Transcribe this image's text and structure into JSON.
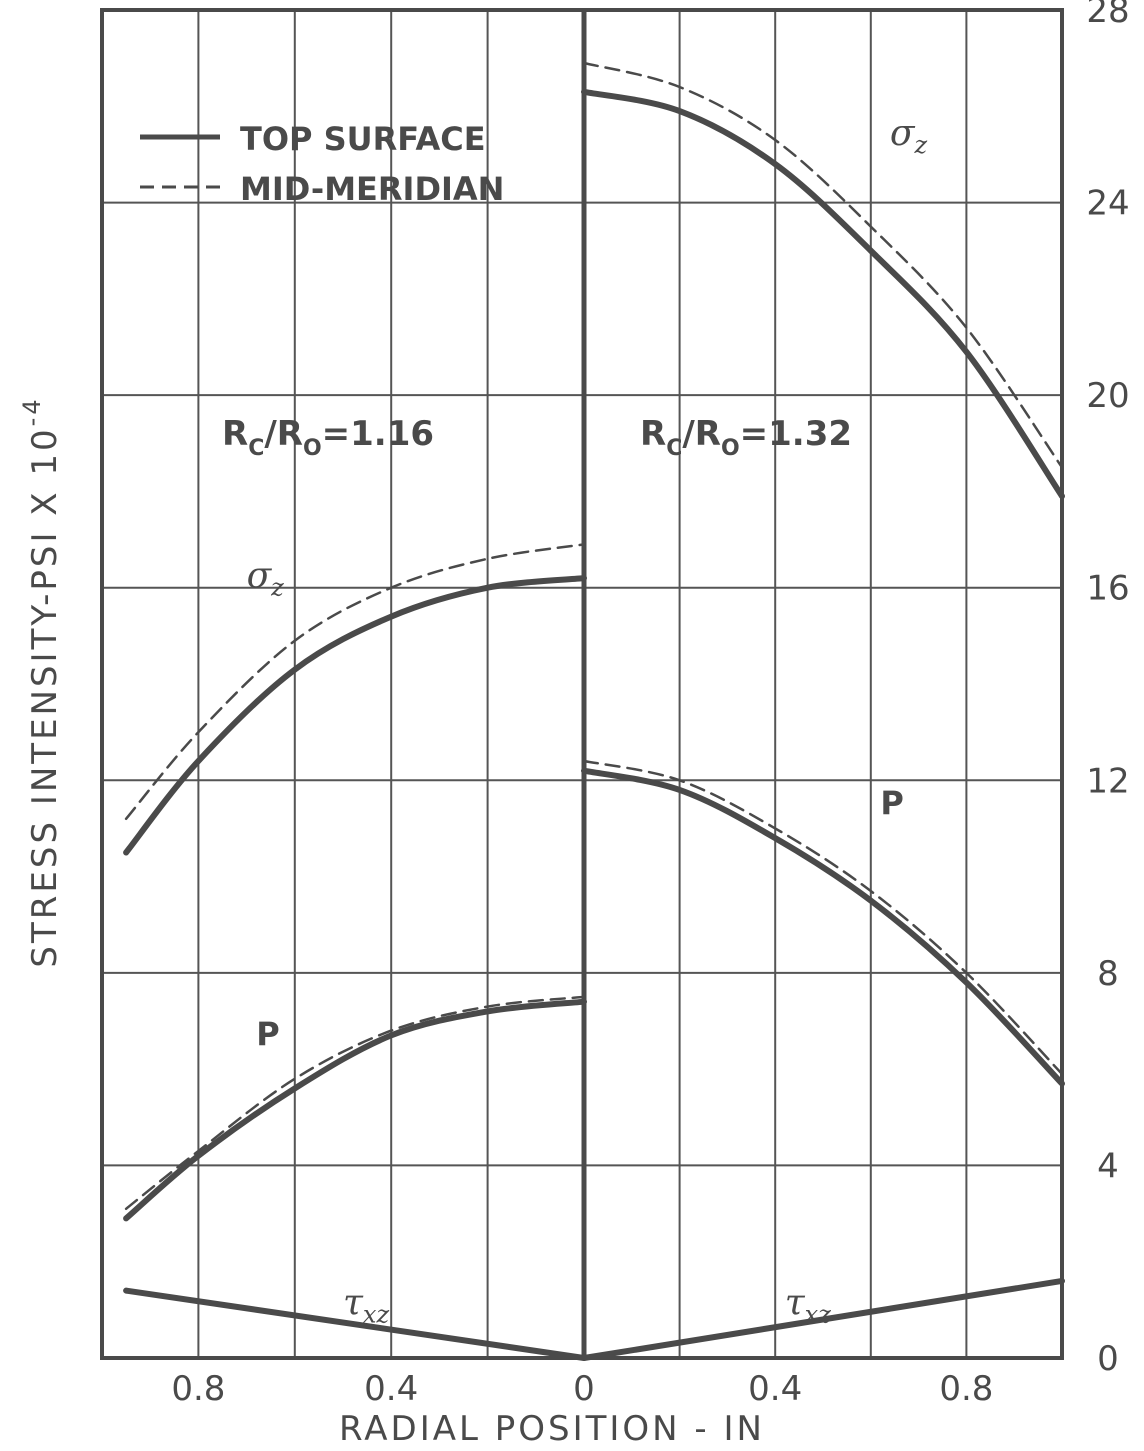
{
  "chart_data": {
    "type": "line",
    "ylabel": "STRESS INTENSITY-PSI X 10",
    "ylabel_exponent": "-4",
    "xlabel": "RADIAL POSITION - IN",
    "ylim": [
      0,
      28
    ],
    "y_ticks": [
      "0",
      "4",
      "8",
      "12",
      "16",
      "20",
      "24",
      "28"
    ],
    "x_ticks_left": [
      "0.8",
      "0.4",
      "0"
    ],
    "x_ticks_right": [
      "0",
      "0.4",
      "0.8"
    ],
    "grid": true,
    "legend_position": "top-left",
    "legend": [
      {
        "label": "TOP SURFACE",
        "style": "solid"
      },
      {
        "label": "MID-MERIDIAN",
        "style": "dashed"
      }
    ],
    "panels": [
      {
        "id": "left",
        "annotation": {
          "r": "R",
          "sub_c": "C",
          "slash": "/R",
          "sub_o": "O",
          "value": "=1.16"
        },
        "x_direction": "reversed",
        "xlim": [
          0,
          1.0
        ],
        "series": [
          {
            "curve": "sigma_z",
            "style": "solid",
            "x": [
              0.95,
              0.8,
              0.6,
              0.4,
              0.2,
              0.0
            ],
            "y": [
              10.5,
              12.4,
              14.3,
              15.4,
              16.0,
              16.2
            ]
          },
          {
            "curve": "sigma_z",
            "style": "dashed",
            "x": [
              0.95,
              0.8,
              0.6,
              0.4,
              0.2,
              0.0
            ],
            "y": [
              11.2,
              13.0,
              14.9,
              16.0,
              16.6,
              16.9
            ]
          },
          {
            "curve": "P",
            "style": "solid",
            "x": [
              0.95,
              0.8,
              0.6,
              0.4,
              0.2,
              0.0
            ],
            "y": [
              2.9,
              4.2,
              5.6,
              6.7,
              7.2,
              7.4
            ]
          },
          {
            "curve": "P",
            "style": "dashed",
            "x": [
              0.95,
              0.8,
              0.6,
              0.4,
              0.2,
              0.0
            ],
            "y": [
              3.1,
              4.3,
              5.8,
              6.8,
              7.3,
              7.5
            ]
          },
          {
            "curve": "tau_xz",
            "style": "solid",
            "x": [
              0.95,
              0.0
            ],
            "y": [
              1.4,
              0.0
            ]
          }
        ]
      },
      {
        "id": "right",
        "annotation": {
          "r": "R",
          "sub_c": "C",
          "slash": "/R",
          "sub_o": "O",
          "value": "=1.32"
        },
        "x_direction": "normal",
        "xlim": [
          0,
          1.0
        ],
        "series": [
          {
            "curve": "sigma_z",
            "style": "solid",
            "x": [
              0.0,
              0.2,
              0.4,
              0.6,
              0.8,
              1.0
            ],
            "y": [
              26.3,
              25.9,
              24.8,
              23.0,
              20.9,
              17.9
            ]
          },
          {
            "curve": "sigma_z",
            "style": "dashed",
            "x": [
              0.0,
              0.2,
              0.4,
              0.6,
              0.8,
              1.0
            ],
            "y": [
              26.9,
              26.4,
              25.3,
              23.5,
              21.4,
              18.5
            ]
          },
          {
            "curve": "P",
            "style": "solid",
            "x": [
              0.0,
              0.2,
              0.4,
              0.6,
              0.8,
              1.0
            ],
            "y": [
              12.2,
              11.8,
              10.8,
              9.5,
              7.8,
              5.7
            ]
          },
          {
            "curve": "P",
            "style": "dashed",
            "x": [
              0.0,
              0.2,
              0.4,
              0.6,
              0.8,
              1.0
            ],
            "y": [
              12.4,
              12.0,
              11.0,
              9.7,
              8.0,
              5.9
            ]
          },
          {
            "curve": "tau_xz",
            "style": "solid",
            "x": [
              0.0,
              1.0
            ],
            "y": [
              0.0,
              1.6
            ]
          }
        ]
      }
    ],
    "curve_labels": [
      {
        "panel": "right",
        "text": "σ",
        "sub": "z",
        "x": 0.64,
        "y": 25.2
      },
      {
        "panel": "left",
        "text": "σ",
        "sub": "z",
        "x": 0.7,
        "y": 16.0
      },
      {
        "panel": "right",
        "text": "P",
        "sub": "",
        "x": 0.62,
        "y": 11.3
      },
      {
        "panel": "left",
        "text": "P",
        "sub": "",
        "x": 0.68,
        "y": 6.5
      },
      {
        "panel": "left",
        "text": "τ",
        "sub": "xz",
        "x": 0.5,
        "y": 0.9
      },
      {
        "panel": "right",
        "text": "τ",
        "sub": "xz",
        "x": 0.42,
        "y": 0.9
      }
    ]
  }
}
